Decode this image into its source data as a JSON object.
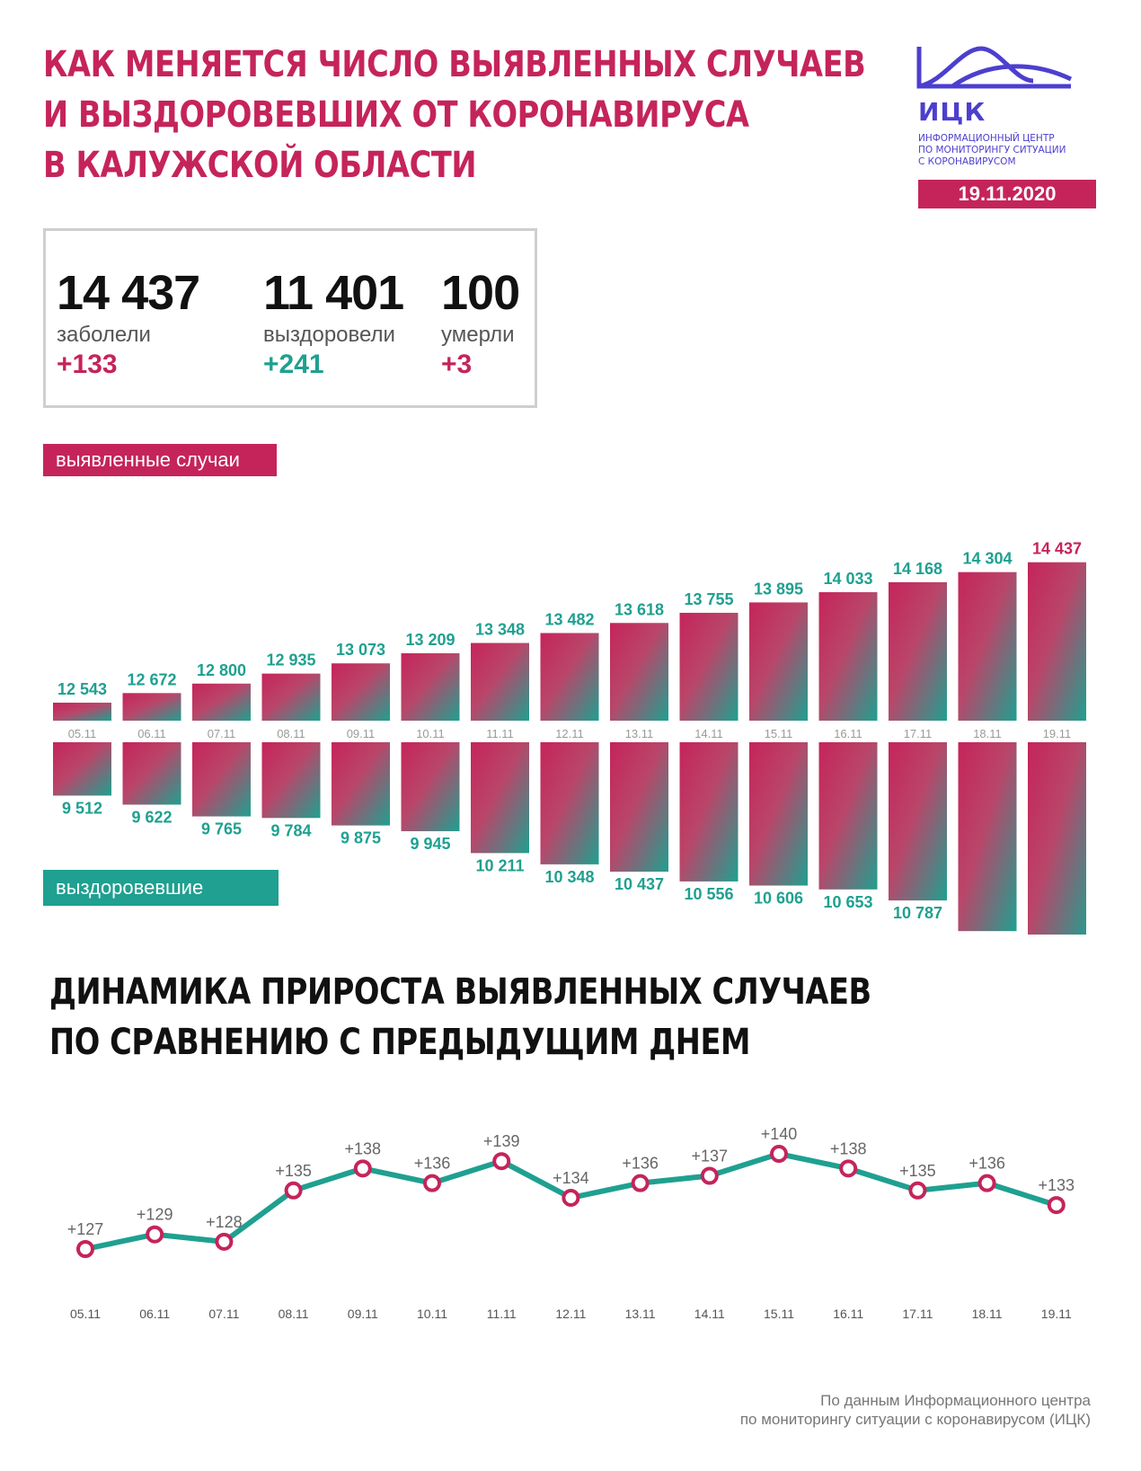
{
  "header": {
    "title_lines": [
      "КАК МЕНЯЕТСЯ ЧИСЛО ВЫЯВЛЕННЫХ СЛУЧАЕВ",
      "И ВЫЗДОРОВЕВШИХ ОТ КОРОНАВИРУСА",
      "В КАЛУЖСКОЙ ОБЛАСТИ"
    ],
    "logo_abbr": "ИЦК",
    "logo_sub_lines": [
      "ИНФОРМАЦИОННЫЙ ЦЕНТР",
      "ПО МОНИТОРИНГУ СИТУАЦИИ",
      "С КОРОНАВИРУСОМ"
    ],
    "date": "19.11.2020"
  },
  "summary": {
    "infected": {
      "value": "14 437",
      "label": "заболели",
      "delta": "+133"
    },
    "recovered": {
      "value": "11 401",
      "label": "выздоровели",
      "delta": "+241"
    },
    "died": {
      "value": "100",
      "label": "умерли",
      "delta": "+3"
    }
  },
  "colors": {
    "accent_red": "#c5245a",
    "accent_green": "#1fa090",
    "logo_blue": "#4c3fcf"
  },
  "chart_data": [
    {
      "type": "bar",
      "categories": [
        "05.11",
        "06.11",
        "07.11",
        "08.11",
        "09.11",
        "10.11",
        "11.11",
        "12.11",
        "13.11",
        "14.11",
        "15.11",
        "16.11",
        "17.11",
        "18.11",
        "19.11"
      ],
      "series": [
        {
          "name": "выявленные случаи",
          "values": [
            12543,
            12672,
            12800,
            12935,
            13073,
            13209,
            13348,
            13482,
            13618,
            13755,
            13895,
            14033,
            14168,
            14304,
            14437
          ]
        },
        {
          "name": "выздоровевшие",
          "values": [
            9512,
            9622,
            9765,
            9784,
            9875,
            9945,
            10211,
            10348,
            10437,
            10556,
            10606,
            10653,
            10787,
            11160,
            11401
          ]
        }
      ]
    },
    {
      "type": "line",
      "title_lines": [
        "ДИНАМИКА ПРИРОСТА ВЫЯВЛЕННЫХ СЛУЧАЕВ",
        "ПО СРАВНЕНИЮ С ПРЕДЫДУЩИМ ДНЕМ"
      ],
      "categories": [
        "05.11",
        "06.11",
        "07.11",
        "08.11",
        "09.11",
        "10.11",
        "11.11",
        "12.11",
        "13.11",
        "14.11",
        "15.11",
        "16.11",
        "17.11",
        "18.11",
        "19.11"
      ],
      "values": [
        127,
        129,
        128,
        135,
        138,
        136,
        139,
        134,
        136,
        137,
        140,
        138,
        135,
        136,
        133
      ]
    }
  ],
  "footer": {
    "source_lines": [
      "По данным Информационного центра",
      "по мониторингу ситуации с коронавирусом (ИЦК)"
    ]
  }
}
